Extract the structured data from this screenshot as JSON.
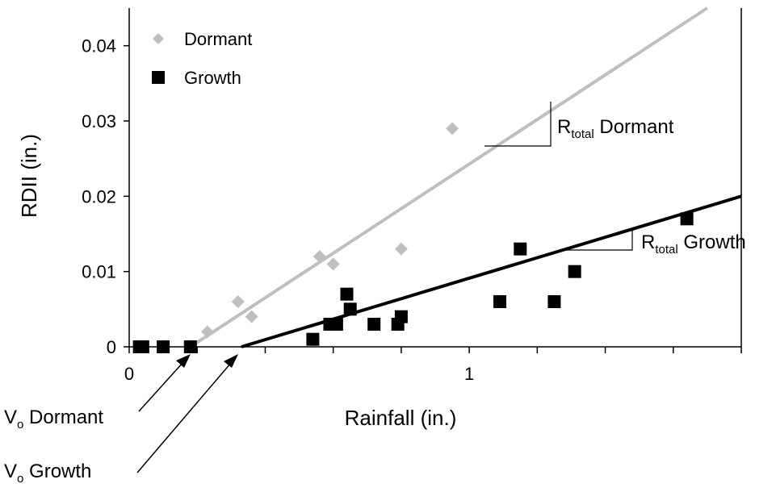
{
  "chart_data": {
    "type": "scatter",
    "xlabel": "Rainfall (in.)",
    "ylabel": "RDII (in.)",
    "xlim": [
      0,
      1.8
    ],
    "ylim": [
      0,
      0.045
    ],
    "x_ticks": [
      0,
      1
    ],
    "x_minor_ticks": [
      0.2,
      0.4,
      0.6,
      0.8,
      1.2,
      1.4,
      1.6,
      1.8
    ],
    "y_ticks": [
      0,
      0.01,
      0.02,
      0.03,
      0.04
    ],
    "y_tick_labels": [
      "0",
      "0.01",
      "0.02",
      "0.03",
      "0.04"
    ],
    "x_tick_labels": [
      "0",
      "1"
    ],
    "grid": false,
    "legend_position": "top-left",
    "series": [
      {
        "name": "Dormant",
        "marker": "diamond",
        "color": "#bfbfbf",
        "points": [
          {
            "x": 0.23,
            "y": 0.002
          },
          {
            "x": 0.32,
            "y": 0.006
          },
          {
            "x": 0.36,
            "y": 0.004
          },
          {
            "x": 0.56,
            "y": 0.012
          },
          {
            "x": 0.6,
            "y": 0.011
          },
          {
            "x": 0.8,
            "y": 0.013
          },
          {
            "x": 0.95,
            "y": 0.029
          }
        ],
        "fit_line": {
          "x": [
            0.18,
            1.7
          ],
          "y": [
            0,
            0.045
          ]
        }
      },
      {
        "name": "Growth",
        "marker": "square",
        "color": "#000000",
        "points": [
          {
            "x": 0.03,
            "y": 0
          },
          {
            "x": 0.04,
            "y": 0
          },
          {
            "x": 0.1,
            "y": 0
          },
          {
            "x": 0.18,
            "y": 0
          },
          {
            "x": 0.54,
            "y": 0.001
          },
          {
            "x": 0.59,
            "y": 0.003
          },
          {
            "x": 0.61,
            "y": 0.003
          },
          {
            "x": 0.64,
            "y": 0.007
          },
          {
            "x": 0.65,
            "y": 0.005
          },
          {
            "x": 0.72,
            "y": 0.003
          },
          {
            "x": 0.79,
            "y": 0.003
          },
          {
            "x": 0.8,
            "y": 0.004
          },
          {
            "x": 1.09,
            "y": 0.006
          },
          {
            "x": 1.15,
            "y": 0.013
          },
          {
            "x": 1.25,
            "y": 0.006
          },
          {
            "x": 1.31,
            "y": 0.01
          },
          {
            "x": 1.64,
            "y": 0.017
          }
        ],
        "fit_line": {
          "x": [
            0.33,
            1.8
          ],
          "y": [
            0,
            0.02
          ]
        }
      }
    ],
    "annotations": {
      "rtotal_dormant": {
        "main": "R",
        "sub": "total",
        "rest": " Dormant"
      },
      "rtotal_growth": {
        "main": "R",
        "sub": "total",
        "rest": " Growth"
      },
      "vo_dormant": {
        "main": "V",
        "sub": "o",
        "rest": " Dormant"
      },
      "vo_growth": {
        "main": "V",
        "sub": "o",
        "rest": " Growth"
      }
    }
  }
}
